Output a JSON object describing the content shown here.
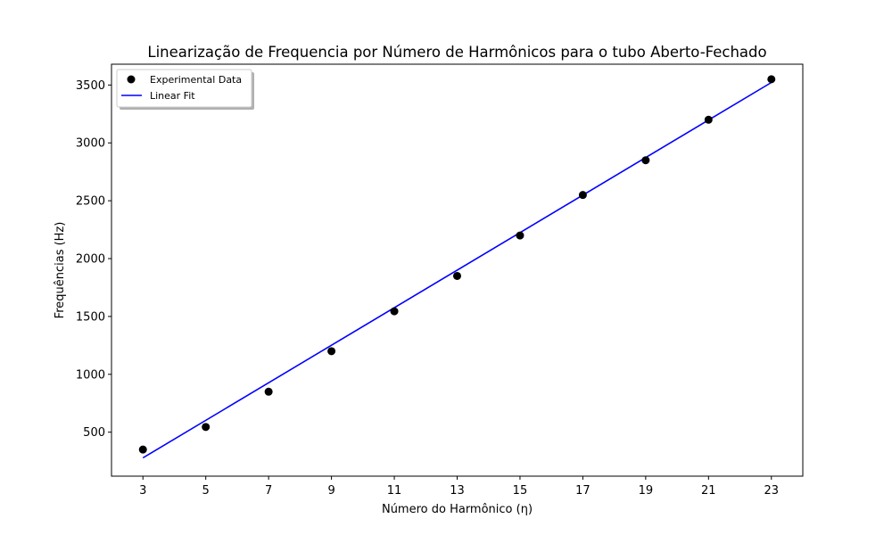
{
  "chart_data": {
    "type": "scatter",
    "title": "Linearização de Frequencia por Número de Harmônicos para o tubo Aberto-Fechado",
    "xlabel": "Número do Harmônico (η)",
    "ylabel": "Frequências (Hz)",
    "xlim": [
      2,
      24
    ],
    "ylim": [
      120,
      3680
    ],
    "xticks": [
      3,
      5,
      7,
      9,
      11,
      13,
      15,
      17,
      19,
      21,
      23
    ],
    "yticks": [
      500,
      1000,
      1500,
      2000,
      2500,
      3000,
      3500
    ],
    "grid": false,
    "legend_position": "top-left",
    "series": [
      {
        "name": "Experimental Data",
        "kind": "scatter",
        "color": "#000000",
        "x": [
          3,
          5,
          7,
          9,
          11,
          13,
          15,
          17,
          19,
          21,
          23
        ],
        "y": [
          350,
          545,
          850,
          1200,
          1545,
          1850,
          2200,
          2550,
          2850,
          3200,
          3550
        ]
      },
      {
        "name": "Linear Fit",
        "kind": "line",
        "color": "#0000ff",
        "x": [
          3,
          23
        ],
        "y": [
          278,
          3522
        ]
      }
    ]
  }
}
